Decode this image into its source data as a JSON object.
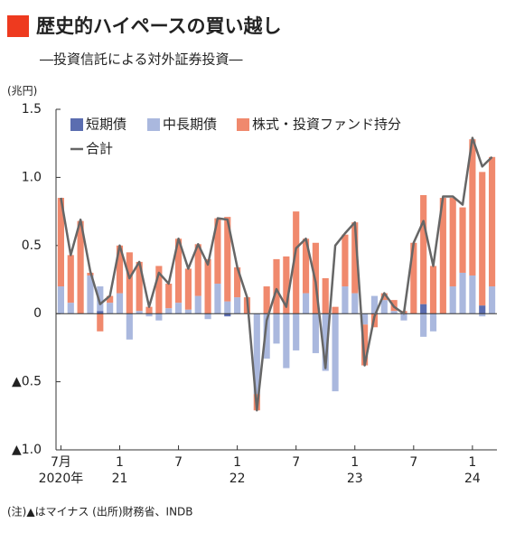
{
  "chart_data": {
    "type": "stacked_bar_line",
    "title": "歴史的ハイペースの買い越し",
    "subtitle": "―投資信託による対外証券投資―",
    "y_unit": "(兆円)",
    "note": "(注)▲はマイナス (出所)財務省、INDB",
    "categories": [
      "7月",
      null,
      null,
      null,
      null,
      null,
      "1",
      null,
      null,
      null,
      null,
      null,
      "7",
      null,
      null,
      null,
      null,
      null,
      "1",
      null,
      null,
      null,
      null,
      null,
      "7",
      null,
      null,
      null,
      null,
      null,
      "1",
      null,
      null,
      null,
      null,
      null,
      "7",
      null,
      null,
      null,
      null,
      null,
      "1",
      null,
      null
    ],
    "category_years": [
      "2020年",
      null,
      null,
      null,
      null,
      null,
      "21",
      null,
      null,
      null,
      null,
      null,
      null,
      null,
      null,
      null,
      null,
      null,
      "22",
      null,
      null,
      null,
      null,
      null,
      null,
      null,
      null,
      null,
      null,
      null,
      "23",
      null,
      null,
      null,
      null,
      null,
      null,
      null,
      null,
      null,
      null,
      null,
      "24",
      null,
      null
    ],
    "series": [
      {
        "name": "短期債",
        "color": "#5b6db0",
        "values": [
          0,
          0,
          0,
          0,
          0.02,
          0,
          0,
          0,
          0,
          0,
          0,
          0,
          0,
          0,
          0,
          0,
          0,
          -0.02,
          0,
          0,
          0,
          0,
          0,
          0,
          0,
          0,
          0,
          0,
          0,
          0,
          0,
          0,
          0,
          0,
          0,
          0,
          0,
          0.07,
          0,
          0,
          0,
          0,
          0,
          0.06,
          0
        ]
      },
      {
        "name": "中長期債",
        "color": "#aab8de",
        "values": [
          0.2,
          0.08,
          0,
          0.28,
          0.18,
          0.08,
          0.15,
          -0.19,
          0.02,
          -0.02,
          -0.05,
          0.04,
          0.08,
          0.03,
          0.13,
          -0.04,
          0.22,
          0.09,
          0.12,
          0,
          -0.59,
          -0.33,
          -0.22,
          -0.4,
          -0.27,
          0.15,
          -0.29,
          -0.42,
          -0.57,
          0.2,
          0.15,
          -0.08,
          0.13,
          0.1,
          0.02,
          -0.05,
          0,
          -0.17,
          -0.13,
          0,
          0.2,
          0.3,
          0.28,
          -0.02,
          0.2
        ]
      },
      {
        "name": "株式・投資ファンド持分",
        "color": "#f0896d",
        "values": [
          0.65,
          0.35,
          0.68,
          0.02,
          -0.13,
          0.05,
          0.35,
          0.45,
          0.36,
          0.05,
          0.35,
          0.18,
          0.47,
          0.3,
          0.38,
          0.4,
          0.48,
          0.62,
          0.22,
          0.12,
          -0.12,
          0.2,
          0.4,
          0.42,
          0.75,
          0.4,
          0.52,
          0.26,
          0.05,
          0.38,
          0.52,
          -0.3,
          -0.1,
          0.05,
          0.08,
          0.02,
          0.52,
          0.8,
          0.35,
          0.85,
          0.65,
          0.48,
          1.0,
          0.98,
          0.95
        ]
      },
      {
        "name": "合計",
        "type": "line",
        "color": "#666666",
        "values": [
          0.85,
          0.43,
          0.69,
          0.31,
          0.07,
          0.13,
          0.5,
          0.26,
          0.38,
          0.05,
          0.3,
          0.22,
          0.55,
          0.33,
          0.51,
          0.36,
          0.7,
          0.69,
          0.34,
          0.12,
          -0.71,
          -0.05,
          0.18,
          0.05,
          0.48,
          0.55,
          0.23,
          -0.4,
          0.5,
          0.59,
          0.67,
          -0.38,
          -0.02,
          0.15,
          0.05,
          0,
          0.52,
          0.68,
          0.35,
          0.86,
          0.86,
          0.8,
          1.29,
          1.08,
          1.15
        ]
      }
    ],
    "ylim": [
      -1,
      1.5
    ],
    "yticks": [
      1.5,
      {
        "value": 1,
        "label": "1.0"
      },
      0.5,
      0,
      {
        "value": -0.5,
        "label": "▲0.5"
      },
      {
        "value": -1,
        "label": "▲1.0"
      }
    ]
  }
}
